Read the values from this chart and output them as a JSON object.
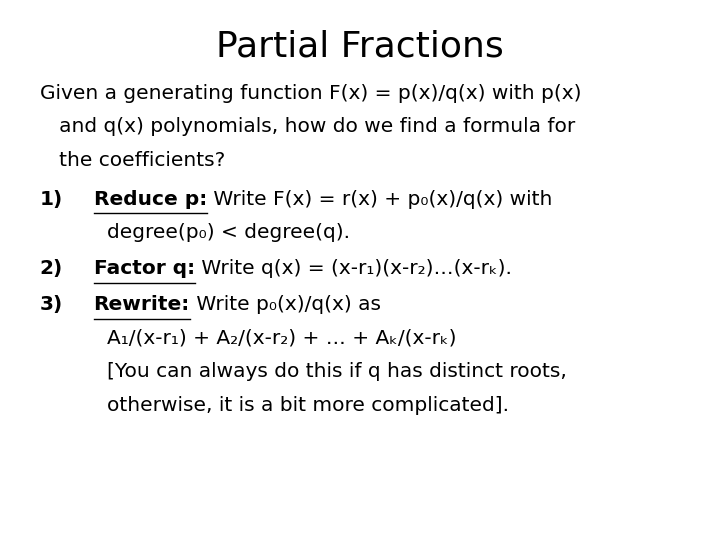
{
  "title": "Partial Fractions",
  "background_color": "#ffffff",
  "title_fontsize": 26,
  "body_fontsize": 14.5,
  "font_family": "DejaVu Sans",
  "items": [
    {
      "type": "paragraph",
      "lines": [
        "Given a generating function F(x) = p(x)/q(x) with p(x)",
        "   and q(x) polynomials, how do we find a formula for",
        "   the coefficients?"
      ]
    },
    {
      "type": "numbered",
      "number": "1)",
      "bold_label": "Reduce p:",
      "rest_line1": " Write F(x) = r(x) + p₀(x)/q(x) with",
      "cont_lines": [
        "degree(p₀) < degree(q)."
      ]
    },
    {
      "type": "numbered",
      "number": "2)",
      "bold_label": "Factor q:",
      "rest_line1": " Write q(x) = (x-r₁)(x-r₂)…(x-rₖ).",
      "cont_lines": []
    },
    {
      "type": "numbered",
      "number": "3)",
      "bold_label": "Rewrite:",
      "rest_line1": " Write p₀(x)/q(x) as",
      "cont_lines": [
        "A₁/(x-r₁) + A₂/(x-r₂) + … + Aₖ/(x-rₖ)",
        "[You can always do this if q has distinct roots,",
        "otherwise, it is a bit more complicated]."
      ]
    }
  ]
}
